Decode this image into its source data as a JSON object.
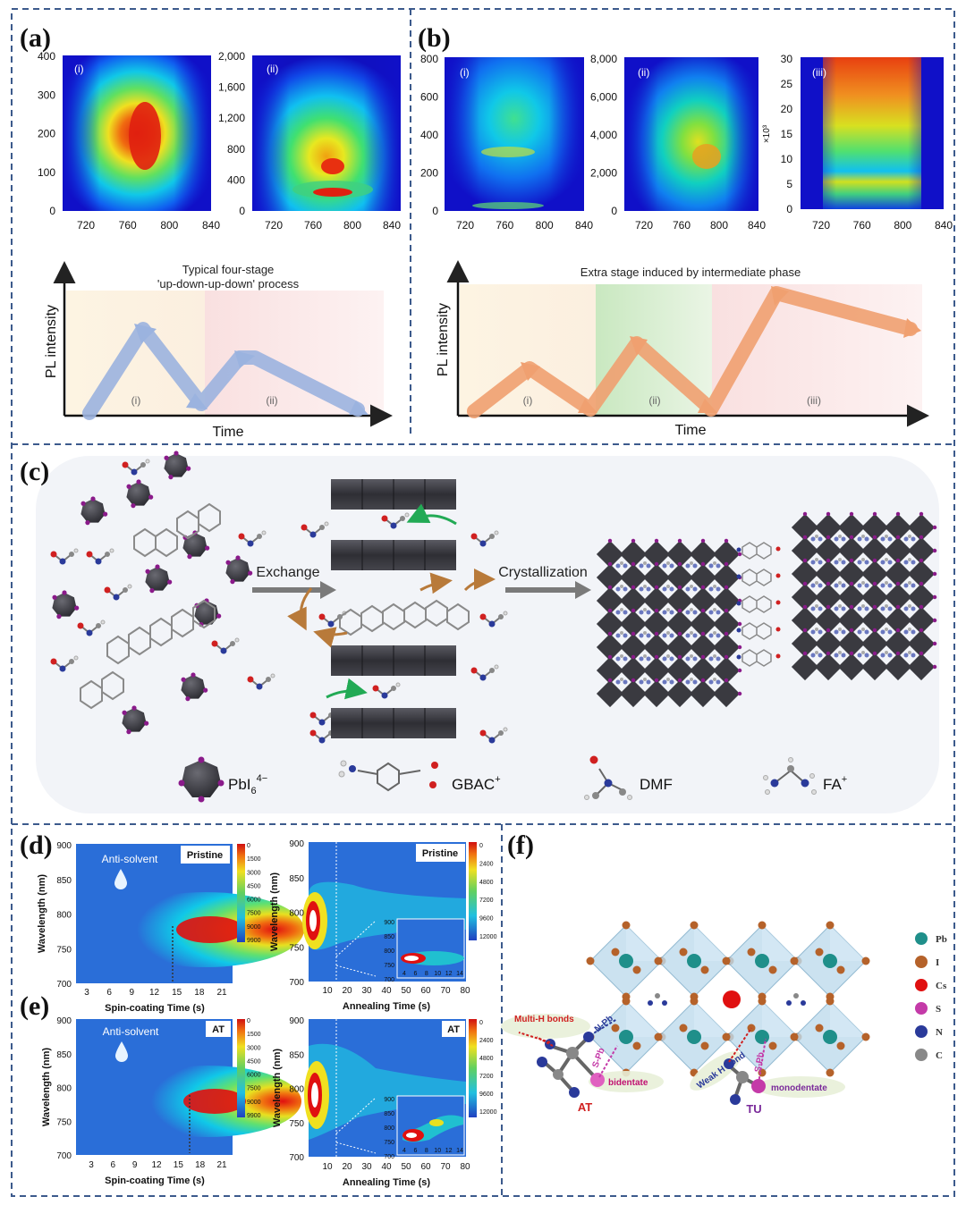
{
  "panels": {
    "a": {
      "label": "(a)",
      "plots": [
        {
          "sub": "(i)",
          "y_ticks": [
            "400",
            "300",
            "200",
            "100",
            "0"
          ],
          "x_ticks": [
            "720",
            "760",
            "800",
            "840"
          ]
        },
        {
          "sub": "(ii)",
          "y_ticks": [
            "2,000",
            "1,600",
            "1,200",
            "800",
            "400",
            "0"
          ],
          "x_ticks": [
            "720",
            "760",
            "800",
            "840"
          ]
        }
      ],
      "schematic": {
        "title_line1": "Typical four-stage",
        "title_line2": "'up-down-up-down' process",
        "ylabel": "PL intensity",
        "xlabel": "Time",
        "stages": [
          "(i)",
          "(ii)"
        ]
      }
    },
    "b": {
      "label": "(b)",
      "plots": [
        {
          "sub": "(i)",
          "y_ticks": [
            "800",
            "600",
            "400",
            "200",
            "0"
          ],
          "x_ticks": [
            "720",
            "760",
            "800",
            "840"
          ]
        },
        {
          "sub": "(ii)",
          "y_ticks": [
            "8,000",
            "6,000",
            "4,000",
            "2,000",
            "0"
          ],
          "x_ticks": [
            "720",
            "760",
            "800",
            "840"
          ]
        },
        {
          "sub": "(iii)",
          "y_ticks": [
            "30",
            "25",
            "20",
            "15",
            "10",
            "5",
            "0"
          ],
          "x_ticks": [
            "720",
            "760",
            "800",
            "840"
          ],
          "y_unit": "×10³"
        }
      ],
      "schematic": {
        "title": "Extra stage induced by intermediate phase",
        "ylabel": "PL intensity",
        "xlabel": "Time",
        "stages": [
          "(i)",
          "(ii)",
          "(iii)"
        ]
      }
    },
    "c": {
      "label": "(c)",
      "arrow1": "Exchange",
      "arrow2": "Crystallization",
      "legend": [
        {
          "name": "PbI",
          "sub": "6",
          "sup": "4−"
        },
        {
          "name": "GBAC",
          "sup": "+"
        },
        {
          "name": "DMF"
        },
        {
          "name": "FA",
          "sup": "+"
        }
      ]
    },
    "d": {
      "label": "(d)",
      "left": {
        "tag": "Pristine",
        "annotation": "Anti-solvent",
        "ylabel": "Wavelength (nm)",
        "xlabel": "Spin-coating Time (s)",
        "y_ticks": [
          "900",
          "850",
          "800",
          "750",
          "700"
        ],
        "x_ticks": [
          "3",
          "6",
          "9",
          "12",
          "15",
          "18",
          "21"
        ],
        "cbar_ticks": [
          "0",
          "1500",
          "3000",
          "4500",
          "6000",
          "7500",
          "9000",
          "9900"
        ]
      },
      "right": {
        "tag": "Pristine",
        "ylabel": "Wavelength (nm)",
        "xlabel": "Annealing Time (s)",
        "y_ticks": [
          "900",
          "850",
          "800",
          "750",
          "700"
        ],
        "x_ticks": [
          "10",
          "20",
          "30",
          "40",
          "50",
          "60",
          "70",
          "80"
        ],
        "cbar_ticks": [
          "0",
          "2400",
          "4800",
          "7200",
          "9600",
          "12000"
        ],
        "inset_y": [
          "900",
          "850",
          "800",
          "750",
          "700"
        ],
        "inset_x": [
          "4",
          "6",
          "8",
          "10",
          "12",
          "14"
        ]
      }
    },
    "e": {
      "label": "(e)",
      "left": {
        "tag": "AT",
        "annotation": "Anti-solvent",
        "ylabel": "Wavelength (nm)",
        "xlabel": "Spin-coating Time (s)",
        "y_ticks": [
          "900",
          "850",
          "800",
          "750",
          "700"
        ],
        "x_ticks": [
          "3",
          "6",
          "9",
          "12",
          "15",
          "18",
          "21"
        ],
        "cbar_ticks": [
          "0",
          "1500",
          "3000",
          "4500",
          "6000",
          "7500",
          "9000",
          "9900"
        ]
      },
      "right": {
        "tag": "AT",
        "ylabel": "Wavelength (nm)",
        "xlabel": "Annealing Time (s)",
        "y_ticks": [
          "900",
          "850",
          "800",
          "750",
          "700"
        ],
        "x_ticks": [
          "10",
          "20",
          "30",
          "40",
          "50",
          "60",
          "70",
          "80"
        ],
        "cbar_ticks": [
          "0",
          "2400",
          "4800",
          "7200",
          "9600",
          "12000"
        ],
        "inset_y": [
          "900",
          "850",
          "800",
          "750",
          "700"
        ],
        "inset_x": [
          "4",
          "6",
          "8",
          "10",
          "12",
          "14"
        ]
      }
    },
    "f": {
      "label": "(f)",
      "multi_h": "Multi-H bonds",
      "n_pb": "N-Pb",
      "s_pb_left": "S-Pb",
      "bidentate": "bidentate",
      "at": "AT",
      "weak_h": "Weak H bond",
      "s_pb_right": "S-Pb",
      "monodentate": "monodentate",
      "tu": "TU",
      "elements": [
        {
          "sym": "Pb",
          "color": "#1f8f8a"
        },
        {
          "sym": "I",
          "color": "#b5622a"
        },
        {
          "sym": "Cs",
          "color": "#e01010"
        },
        {
          "sym": "S",
          "color": "#c43aa8"
        },
        {
          "sym": "N",
          "color": "#2a3a9a"
        },
        {
          "sym": "C",
          "color": "#888888"
        }
      ]
    }
  }
}
